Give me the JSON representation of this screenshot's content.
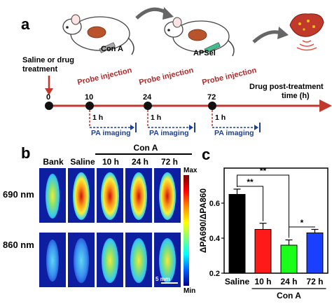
{
  "panel_a": {
    "letter": "a",
    "labels": {
      "saline": "Saline or drug",
      "treatment": "treatment",
      "con_a": "Con A",
      "apsel": "APSel",
      "drug_post": "Drug post-treatment",
      "time": "time (h)"
    },
    "timeline_ticks": [
      "0",
      "10",
      "24",
      "72"
    ],
    "probe_injection": "Probe injection",
    "one_h": "1 h",
    "pa_imaging": "PA imaging"
  },
  "panel_b": {
    "letter": "b",
    "column_headers": [
      "Bank",
      "Saline",
      "10 h",
      "24 h",
      "72 h"
    ],
    "group_header": "Con A",
    "row_labels": [
      "690 nm",
      "860 nm"
    ],
    "scale_max": "Max",
    "scale_min": "Min",
    "scale_bar": "5 mm"
  },
  "panel_c": {
    "letter": "c",
    "group_label": "Con A",
    "sig_labels": [
      "**",
      "**",
      "*"
    ],
    "colors": {
      "saline": "#000000",
      "10h": "#ff1a1a",
      "24h": "#1aff1a",
      "72h": "#1a3fff"
    }
  },
  "chart_data": {
    "type": "bar",
    "categories": [
      "Saline",
      "10 h",
      "24 h",
      "72 h"
    ],
    "values": [
      0.65,
      0.45,
      0.36,
      0.43
    ],
    "errors": [
      0.03,
      0.035,
      0.03,
      0.02
    ],
    "ylabel": "ΔPA690/ΔPA860",
    "yticks": [
      "0.2",
      "0.4",
      "0.6"
    ],
    "ylim": [
      0.2,
      0.8
    ]
  }
}
